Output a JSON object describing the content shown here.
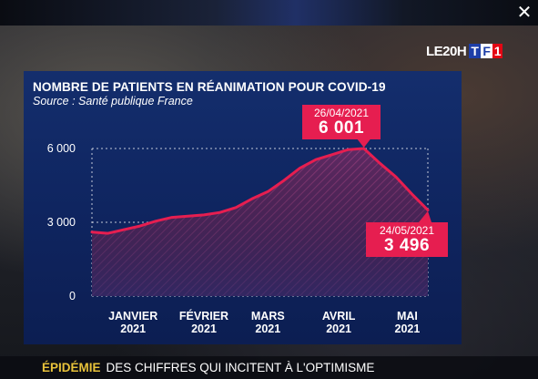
{
  "window": {
    "close_glyph": "✕"
  },
  "logo": {
    "text": "LE20H",
    "tf1_letters": [
      "T",
      "F",
      "1"
    ]
  },
  "ticker": {
    "lead": "ÉPIDÉMIE",
    "text": "DES CHIFFRES QUI INCITENT À L'OPTIMISME"
  },
  "colors": {
    "panel": "#0f2560",
    "accent": "#e61e50",
    "ticker_lead": "#e8c23a"
  },
  "chart_data": {
    "type": "area",
    "title": "NOMBRE DE PATIENTS EN RÉANIMATION POUR COVID-19",
    "subtitle": "Source : Santé publique France",
    "ylim": [
      0,
      6000
    ],
    "y_ticks": [
      {
        "value": 0,
        "label": "0"
      },
      {
        "value": 3000,
        "label": "3 000"
      },
      {
        "value": 6000,
        "label": "6 000"
      }
    ],
    "x_range": [
      "2020-12-28",
      "2021-05-24"
    ],
    "x_ticks": [
      {
        "date": "2021-01-15",
        "line1": "JANVIER",
        "line2": "2021"
      },
      {
        "date": "2021-02-15",
        "line1": "FÉVRIER",
        "line2": "2021"
      },
      {
        "date": "2021-03-15",
        "line1": "MARS",
        "line2": "2021"
      },
      {
        "date": "2021-04-15",
        "line1": "AVRIL",
        "line2": "2021"
      },
      {
        "date": "2021-05-15",
        "line1": "MAI",
        "line2": "2021"
      }
    ],
    "series": [
      {
        "points": [
          [
            "2020-12-28",
            2600
          ],
          [
            "2021-01-04",
            2550
          ],
          [
            "2021-01-11",
            2700
          ],
          [
            "2021-01-18",
            2850
          ],
          [
            "2021-01-25",
            3050
          ],
          [
            "2021-02-01",
            3200
          ],
          [
            "2021-02-08",
            3250
          ],
          [
            "2021-02-15",
            3300
          ],
          [
            "2021-02-22",
            3400
          ],
          [
            "2021-03-01",
            3600
          ],
          [
            "2021-03-08",
            3950
          ],
          [
            "2021-03-15",
            4250
          ],
          [
            "2021-03-22",
            4700
          ],
          [
            "2021-03-29",
            5200
          ],
          [
            "2021-04-05",
            5550
          ],
          [
            "2021-04-12",
            5750
          ],
          [
            "2021-04-19",
            5950
          ],
          [
            "2021-04-26",
            6001
          ],
          [
            "2021-05-03",
            5400
          ],
          [
            "2021-05-10",
            4850
          ],
          [
            "2021-05-17",
            4150
          ],
          [
            "2021-05-24",
            3496
          ]
        ]
      }
    ],
    "annotations": [
      {
        "date": "2021-04-26",
        "value": 6001,
        "date_label": "26/04/2021",
        "value_label": "6 001"
      },
      {
        "date": "2021-05-24",
        "value": 3496,
        "date_label": "24/05/2021",
        "value_label": "3 496"
      }
    ],
    "reference_lines": [
      6000,
      3000,
      0
    ]
  }
}
